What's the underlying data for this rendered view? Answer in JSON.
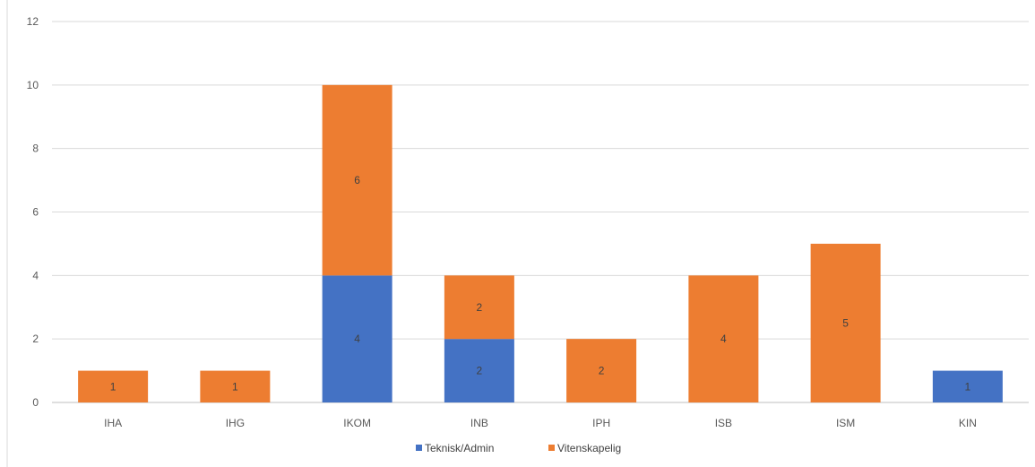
{
  "chart_data": {
    "type": "bar",
    "stacked": true,
    "categories": [
      "IHA",
      "IHG",
      "IKOM",
      "INB",
      "IPH",
      "ISB",
      "ISM",
      "KIN"
    ],
    "series": [
      {
        "name": "Teknisk/Admin",
        "color": "#4472c4",
        "values": [
          0,
          0,
          4,
          2,
          0,
          0,
          0,
          1
        ]
      },
      {
        "name": "Vitenskapelig",
        "color": "#ed7d31",
        "values": [
          1,
          1,
          6,
          2,
          2,
          4,
          5,
          0
        ]
      }
    ],
    "ylim": [
      0,
      12
    ],
    "yticks": [
      0,
      2,
      4,
      6,
      8,
      10,
      12
    ],
    "grid": true,
    "legend_position": "bottom",
    "data_labels": true,
    "title": "",
    "xlabel": "",
    "ylabel": ""
  }
}
